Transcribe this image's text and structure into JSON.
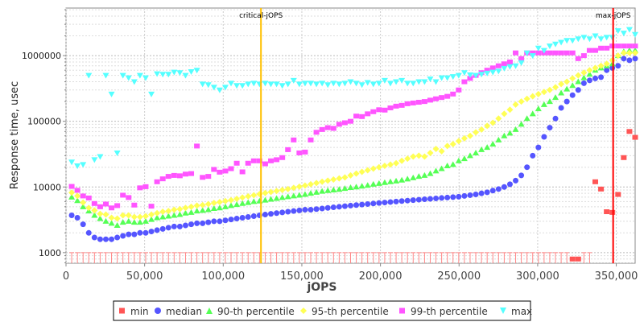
{
  "chart_data": {
    "type": "scatter",
    "xlabel": "jOPS",
    "ylabel": "Response time, usec",
    "xlim": [
      0,
      362000
    ],
    "ylim": [
      690,
      5300000
    ],
    "yscale": "log",
    "grid": true,
    "legend_position": "bottom",
    "x_ticks": [
      0,
      50000,
      100000,
      150000,
      200000,
      250000,
      300000,
      350000
    ],
    "x_tick_labels": [
      "0",
      "50,000",
      "100,000",
      "150,000",
      "200,000",
      "250,000",
      "300,000",
      "350,000"
    ],
    "y_ticks": [
      1000,
      10000,
      100000,
      1000000
    ],
    "y_tick_labels": [
      "1000",
      "10000",
      "100000",
      "1000000"
    ],
    "x_step": 3620,
    "markers": [
      {
        "label": "critical-jOPS",
        "x": 124000,
        "color": "#ffc000"
      },
      {
        "label": "max-jOPS",
        "x": 348000,
        "color": "#ff0000"
      }
    ],
    "series": [
      {
        "name": "min",
        "color": "#ff5555",
        "shape": "square",
        "values": [
          500,
          500,
          500,
          500,
          500,
          500,
          500,
          500,
          500,
          500,
          500,
          500,
          500,
          500,
          500,
          500,
          500,
          500,
          500,
          500,
          500,
          500,
          500,
          500,
          500,
          500,
          500,
          500,
          500,
          500,
          500,
          500,
          500,
          500,
          500,
          500,
          500,
          500,
          500,
          500,
          500,
          500,
          500,
          500,
          500,
          500,
          500,
          500,
          500,
          500,
          500,
          500,
          500,
          500,
          500,
          500,
          500,
          500,
          500,
          500,
          500,
          500,
          500,
          500,
          500,
          500,
          500,
          500,
          500,
          500,
          500,
          500,
          500,
          500,
          500,
          500,
          500,
          500,
          500,
          500,
          500,
          500,
          500,
          500,
          500,
          500,
          500,
          500,
          800,
          800,
          500,
          500,
          12000,
          9300,
          4200,
          4100,
          7700,
          28000,
          70000,
          57000
        ]
      },
      {
        "name": "median",
        "color": "#5555ff",
        "shape": "circle",
        "values": [
          3700,
          3400,
          2700,
          2000,
          1700,
          1600,
          1600,
          1600,
          1700,
          1800,
          1900,
          1900,
          2000,
          2000,
          2100,
          2200,
          2300,
          2400,
          2500,
          2500,
          2600,
          2700,
          2800,
          2800,
          2900,
          3000,
          3000,
          3100,
          3200,
          3300,
          3400,
          3500,
          3600,
          3700,
          3800,
          3900,
          4000,
          4100,
          4200,
          4300,
          4400,
          4500,
          4500,
          4600,
          4700,
          4800,
          4900,
          5000,
          5100,
          5200,
          5300,
          5400,
          5500,
          5600,
          5700,
          5800,
          5900,
          6000,
          6100,
          6200,
          6300,
          6400,
          6500,
          6600,
          6700,
          6800,
          6900,
          7000,
          7100,
          7300,
          7500,
          7700,
          8000,
          8300,
          8800,
          9300,
          10000,
          11000,
          12500,
          15000,
          20000,
          30000,
          40000,
          58000,
          80000,
          110000,
          160000,
          200000,
          250000,
          300000,
          380000,
          420000,
          450000,
          470000,
          600000,
          650000,
          700000,
          900000,
          850000,
          900000
        ]
      },
      {
        "name": "90-th percentile",
        "color": "#55ff55",
        "shape": "triangle",
        "values": [
          7000,
          6200,
          5000,
          4300,
          3700,
          3300,
          3000,
          2800,
          2600,
          2900,
          3000,
          2900,
          2900,
          3000,
          3200,
          3400,
          3500,
          3600,
          3700,
          3800,
          4000,
          4100,
          4300,
          4400,
          4500,
          4700,
          4800,
          5000,
          5200,
          5400,
          5600,
          5800,
          6000,
          6100,
          6300,
          6500,
          6700,
          6900,
          7100,
          7300,
          7500,
          7700,
          8000,
          8300,
          8600,
          8800,
          9000,
          9200,
          9500,
          9800,
          10000,
          10300,
          10600,
          11000,
          11300,
          11700,
          12000,
          12300,
          12700,
          13200,
          13800,
          14500,
          15000,
          16000,
          17500,
          19000,
          21000,
          22000,
          25000,
          27000,
          30000,
          33000,
          37000,
          40000,
          45000,
          52000,
          60000,
          66000,
          75000,
          90000,
          110000,
          130000,
          155000,
          180000,
          200000,
          230000,
          270000,
          310000,
          350000,
          400000,
          460000,
          520000,
          600000,
          650000,
          700000,
          750000,
          1000000,
          1150000,
          1200000,
          1200000
        ]
      },
      {
        "name": "95-th percentile",
        "color": "#ffff55",
        "shape": "diamond",
        "values": [
          8200,
          7300,
          5800,
          4800,
          4400,
          3900,
          3800,
          3400,
          3300,
          3700,
          3700,
          3500,
          3500,
          3600,
          3800,
          4000,
          4200,
          4300,
          4500,
          4600,
          4800,
          5000,
          5200,
          5300,
          5500,
          5700,
          5900,
          6100,
          6300,
          6600,
          6900,
          7200,
          7500,
          7800,
          8100,
          8400,
          8700,
          9000,
          9300,
          9700,
          10100,
          10500,
          11000,
          11500,
          12000,
          12500,
          13000,
          13500,
          14000,
          15000,
          16000,
          17000,
          18000,
          19000,
          20000,
          21000,
          22000,
          23000,
          25000,
          27000,
          29000,
          30000,
          29000,
          33000,
          38000,
          35000,
          42000,
          45000,
          50000,
          55000,
          60000,
          68000,
          75000,
          85000,
          95000,
          110000,
          130000,
          150000,
          180000,
          200000,
          220000,
          240000,
          260000,
          280000,
          300000,
          330000,
          370000,
          400000,
          450000,
          500000,
          550000,
          600000,
          650000,
          700000,
          750000,
          850000,
          1000000,
          1100000,
          1100000,
          1100000
        ]
      },
      {
        "name": "99-th percentile",
        "color": "#ff55ff",
        "shape": "square",
        "values": [
          10200,
          8900,
          7300,
          6800,
          5600,
          5000,
          5500,
          4800,
          5200,
          7500,
          6900,
          5300,
          9700,
          10100,
          5100,
          12000,
          13300,
          14500,
          15000,
          14800,
          15700,
          16000,
          42000,
          14000,
          14500,
          18500,
          16800,
          17500,
          19000,
          23000,
          17000,
          23000,
          25000,
          25000,
          22500,
          25000,
          26000,
          28000,
          37000,
          52000,
          33000,
          34000,
          52000,
          68000,
          75000,
          80000,
          78000,
          90000,
          95000,
          100000,
          120000,
          118000,
          130000,
          140000,
          150000,
          148000,
          160000,
          170000,
          175000,
          185000,
          190000,
          195000,
          200000,
          210000,
          220000,
          230000,
          240000,
          260000,
          300000,
          400000,
          450000,
          500000,
          550000,
          600000,
          650000,
          700000,
          750000,
          800000,
          1100000,
          900000,
          1100000,
          1100000,
          1100000,
          1100000,
          1100000,
          1100000,
          1100000,
          1100000,
          1100000,
          900000,
          1000000,
          1200000,
          1200000,
          1300000,
          1300000,
          1400000,
          1400000,
          1400000,
          1400000,
          1400000
        ]
      },
      {
        "name": "max",
        "color": "#55ffff",
        "shape": "down-triangle",
        "values": [
          24000,
          21000,
          22000,
          500000,
          26000,
          29000,
          500000,
          260000,
          33000,
          500000,
          460000,
          400000,
          500000,
          460000,
          260000,
          530000,
          520000,
          520000,
          560000,
          550000,
          500000,
          570000,
          600000,
          370000,
          360000,
          330000,
          300000,
          330000,
          380000,
          350000,
          350000,
          370000,
          380000,
          370000,
          380000,
          370000,
          370000,
          350000,
          370000,
          420000,
          370000,
          380000,
          380000,
          370000,
          380000,
          360000,
          380000,
          370000,
          380000,
          400000,
          380000,
          360000,
          390000,
          370000,
          380000,
          420000,
          380000,
          400000,
          420000,
          380000,
          380000,
          400000,
          400000,
          440000,
          400000,
          460000,
          460000,
          480000,
          500000,
          550000,
          510000,
          500000,
          520000,
          540000,
          560000,
          580000,
          640000,
          680000,
          700000,
          780000,
          1100000,
          1000000,
          1300000,
          1200000,
          1400000,
          1500000,
          1600000,
          1700000,
          1700000,
          1800000,
          1900000,
          1800000,
          2000000,
          1800000,
          1900000,
          1900000,
          2400000,
          2200000,
          2500000,
          2100000
        ]
      }
    ]
  }
}
